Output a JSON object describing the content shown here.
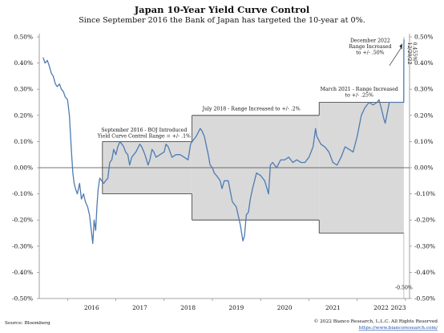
{
  "chart_data": {
    "type": "line",
    "title": "Japan 10-Year Yield Curve Control",
    "subtitle": "Since September 2016 the Bank of Japan has targeted the 10-year at 0%.",
    "x_ticks": [
      "2016",
      "2017",
      "2018",
      "2019",
      "2020",
      "2021",
      "2022",
      "2023"
    ],
    "y_ticks_left": [
      "0.50%",
      "0.40%",
      "0.30%",
      "0.20%",
      "0.10%",
      "0.00%",
      "-0.10%",
      "-0.20%",
      "-0.30%",
      "-0.40%",
      "-0.50%"
    ],
    "y_ticks_right": [
      "0.50%",
      "0.40%",
      "0.30%",
      "0.20%",
      "0.10%",
      "0.00%",
      "-0.10%",
      "-0.20%",
      "-0.30%",
      "-0.40%",
      "-0.50%"
    ],
    "ylim": [
      -0.5,
      0.5
    ],
    "xlim": [
      "2015-06-01",
      "2023-02-01"
    ],
    "grid": false,
    "series": [
      {
        "values": [
          [
            "2015-07-01",
            0.42
          ],
          [
            "2015-07-15",
            0.4
          ],
          [
            "2015-08-01",
            0.41
          ],
          [
            "2015-08-15",
            0.39
          ],
          [
            "2015-09-01",
            0.36
          ],
          [
            "2015-09-15",
            0.35
          ],
          [
            "2015-10-01",
            0.32
          ],
          [
            "2015-10-15",
            0.31
          ],
          [
            "2015-11-01",
            0.32
          ],
          [
            "2015-11-15",
            0.3
          ],
          [
            "2015-12-01",
            0.29
          ],
          [
            "2015-12-15",
            0.27
          ],
          [
            "2016-01-01",
            0.26
          ],
          [
            "2016-01-15",
            0.2
          ],
          [
            "2016-02-01",
            0.05
          ],
          [
            "2016-02-10",
            -0.02
          ],
          [
            "2016-02-20",
            -0.06
          ],
          [
            "2016-03-01",
            -0.08
          ],
          [
            "2016-03-15",
            -0.1
          ],
          [
            "2016-04-01",
            -0.06
          ],
          [
            "2016-04-15",
            -0.12
          ],
          [
            "2016-05-01",
            -0.1
          ],
          [
            "2016-05-15",
            -0.13
          ],
          [
            "2016-06-01",
            -0.15
          ],
          [
            "2016-06-15",
            -0.18
          ],
          [
            "2016-07-01",
            -0.25
          ],
          [
            "2016-07-10",
            -0.29
          ],
          [
            "2016-07-20",
            -0.2
          ],
          [
            "2016-08-01",
            -0.24
          ],
          [
            "2016-08-10",
            -0.15
          ],
          [
            "2016-08-20",
            -0.08
          ],
          [
            "2016-09-01",
            -0.04
          ],
          [
            "2016-09-15",
            -0.05
          ],
          [
            "2016-10-01",
            -0.06
          ],
          [
            "2016-10-15",
            -0.05
          ],
          [
            "2016-11-01",
            -0.04
          ],
          [
            "2016-11-15",
            0.02
          ],
          [
            "2016-12-01",
            0.03
          ],
          [
            "2016-12-15",
            0.07
          ],
          [
            "2017-01-01",
            0.05
          ],
          [
            "2017-01-15",
            0.08
          ],
          [
            "2017-02-01",
            0.1
          ],
          [
            "2017-02-15",
            0.09
          ],
          [
            "2017-03-01",
            0.08
          ],
          [
            "2017-03-15",
            0.06
          ],
          [
            "2017-04-01",
            0.05
          ],
          [
            "2017-04-15",
            0.01
          ],
          [
            "2017-05-01",
            0.04
          ],
          [
            "2017-06-01",
            0.06
          ],
          [
            "2017-07-01",
            0.09
          ],
          [
            "2017-07-15",
            0.08
          ],
          [
            "2017-08-01",
            0.06
          ],
          [
            "2017-08-15",
            0.04
          ],
          [
            "2017-09-01",
            0.01
          ],
          [
            "2017-09-15",
            0.03
          ],
          [
            "2017-10-01",
            0.07
          ],
          [
            "2017-10-15",
            0.06
          ],
          [
            "2017-11-01",
            0.04
          ],
          [
            "2017-12-01",
            0.05
          ],
          [
            "2018-01-01",
            0.06
          ],
          [
            "2018-01-15",
            0.09
          ],
          [
            "2018-02-01",
            0.08
          ],
          [
            "2018-03-01",
            0.04
          ],
          [
            "2018-04-01",
            0.05
          ],
          [
            "2018-05-01",
            0.05
          ],
          [
            "2018-06-01",
            0.04
          ],
          [
            "2018-07-01",
            0.03
          ],
          [
            "2018-07-20",
            0.09
          ],
          [
            "2018-08-01",
            0.1
          ],
          [
            "2018-09-01",
            0.12
          ],
          [
            "2018-10-01",
            0.15
          ],
          [
            "2018-10-15",
            0.14
          ],
          [
            "2018-11-01",
            0.12
          ],
          [
            "2018-12-01",
            0.05
          ],
          [
            "2018-12-15",
            0.01
          ],
          [
            "2019-01-01",
            0.0
          ],
          [
            "2019-01-15",
            -0.02
          ],
          [
            "2019-02-01",
            -0.03
          ],
          [
            "2019-03-01",
            -0.05
          ],
          [
            "2019-03-15",
            -0.08
          ],
          [
            "2019-04-01",
            -0.05
          ],
          [
            "2019-05-01",
            -0.05
          ],
          [
            "2019-06-01",
            -0.13
          ],
          [
            "2019-07-01",
            -0.15
          ],
          [
            "2019-08-01",
            -0.22
          ],
          [
            "2019-08-20",
            -0.28
          ],
          [
            "2019-09-01",
            -0.26
          ],
          [
            "2019-09-15",
            -0.18
          ],
          [
            "2019-10-01",
            -0.17
          ],
          [
            "2019-10-15",
            -0.12
          ],
          [
            "2019-11-01",
            -0.08
          ],
          [
            "2019-12-01",
            -0.02
          ],
          [
            "2020-01-01",
            -0.03
          ],
          [
            "2020-02-01",
            -0.05
          ],
          [
            "2020-03-01",
            -0.1
          ],
          [
            "2020-03-15",
            0.01
          ],
          [
            "2020-04-01",
            0.02
          ],
          [
            "2020-05-01",
            0.0
          ],
          [
            "2020-06-01",
            0.03
          ],
          [
            "2020-07-01",
            0.03
          ],
          [
            "2020-08-01",
            0.04
          ],
          [
            "2020-09-01",
            0.02
          ],
          [
            "2020-10-01",
            0.03
          ],
          [
            "2020-11-01",
            0.02
          ],
          [
            "2020-12-01",
            0.02
          ],
          [
            "2021-01-01",
            0.04
          ],
          [
            "2021-02-01",
            0.08
          ],
          [
            "2021-02-20",
            0.15
          ],
          [
            "2021-03-01",
            0.12
          ],
          [
            "2021-04-01",
            0.09
          ],
          [
            "2021-05-01",
            0.08
          ],
          [
            "2021-06-01",
            0.06
          ],
          [
            "2021-07-01",
            0.02
          ],
          [
            "2021-08-01",
            0.01
          ],
          [
            "2021-09-01",
            0.04
          ],
          [
            "2021-10-01",
            0.08
          ],
          [
            "2021-11-01",
            0.07
          ],
          [
            "2021-12-01",
            0.06
          ],
          [
            "2022-01-01",
            0.12
          ],
          [
            "2022-02-01",
            0.2
          ],
          [
            "2022-03-01",
            0.23
          ],
          [
            "2022-04-01",
            0.25
          ],
          [
            "2022-05-01",
            0.24
          ],
          [
            "2022-06-01",
            0.25
          ],
          [
            "2022-06-15",
            0.26
          ],
          [
            "2022-07-01",
            0.23
          ],
          [
            "2022-07-20",
            0.19
          ],
          [
            "2022-08-01",
            0.17
          ],
          [
            "2022-09-01",
            0.25
          ],
          [
            "2022-10-01",
            0.25
          ],
          [
            "2022-11-01",
            0.25
          ],
          [
            "2022-12-01",
            0.25
          ],
          [
            "2022-12-19",
            0.25
          ],
          [
            "2022-12-20",
            0.46
          ],
          [
            "2022-12-21",
            0.49
          ]
        ]
      }
    ],
    "bands": [
      {
        "start": "2016-09-21",
        "end": "2018-07-31",
        "upper": 0.1,
        "lower": -0.1
      },
      {
        "start": "2018-07-31",
        "end": "2021-03-19",
        "upper": 0.2,
        "lower": -0.2
      },
      {
        "start": "2021-03-19",
        "end": "2022-12-20",
        "upper": 0.25,
        "lower": -0.25
      },
      {
        "start": "2022-12-20",
        "end": "2022-12-21",
        "upper": 0.5,
        "lower": -0.5
      }
    ],
    "annotations": [
      {
        "date": "2016-09-21",
        "lines": [
          "September 2016 - BOJ Introduced",
          "Yield Curve Control Range = +/- .1%"
        ]
      },
      {
        "date": "2018-07-31",
        "lines": [
          "July 2018 - Range Increased to +/- .2%"
        ]
      },
      {
        "date": "2021-03-19",
        "lines": [
          "March 2021 - Range Increased",
          "to +/- .25%"
        ]
      },
      {
        "date": "2022-12-20",
        "lines": [
          "December 2022",
          "Range Increased",
          "to +/- .50%"
        ]
      }
    ],
    "point_labels": [
      {
        "lines": [
          "12/20/22",
          "0.455%"
        ]
      },
      {
        "lines": [
          "-0.50%"
        ]
      }
    ],
    "footer": {
      "source": "Source: Bloomberg",
      "copyright": "© 2022 Bianco Research, L.L.C. All Rights Reserved",
      "url": "https://www.biancoresearch.com/"
    },
    "colors": {
      "line": "#4e7bb3",
      "band": "#d9d9d9",
      "band_border": "#333333",
      "axis": "#888888",
      "text": "#111111",
      "link": "#1f4ea8"
    }
  }
}
